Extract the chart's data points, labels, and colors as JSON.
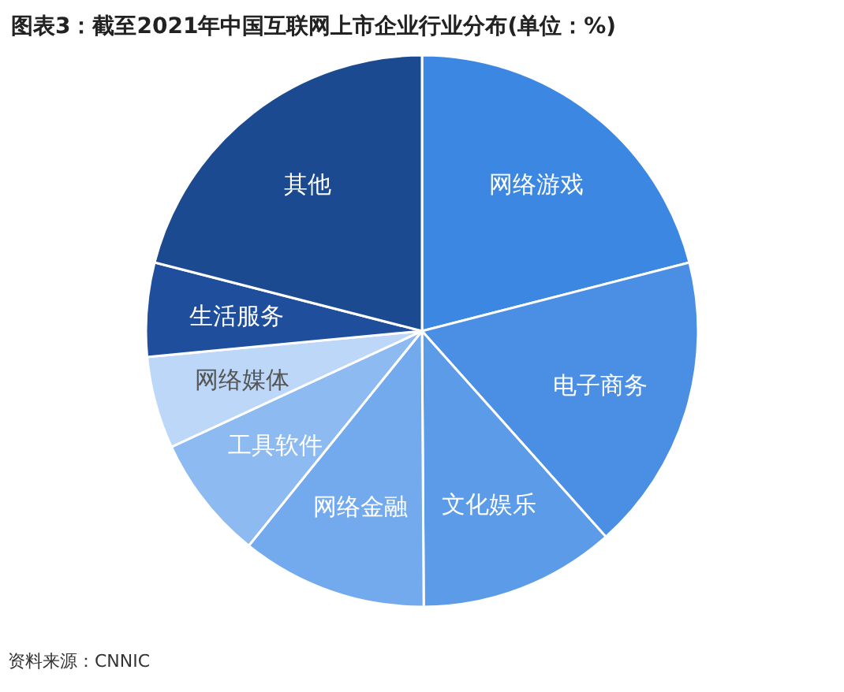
{
  "chart_data": {
    "type": "pie",
    "title": "图表3：截至2021年中国互联网上市企业行业分布(单位：%)",
    "categories": [
      "网络游戏",
      "电子商务",
      "文化娱乐",
      "网络金融",
      "工具软件",
      "网络媒体",
      "生活服务",
      "其他"
    ],
    "values": [
      21.0,
      17.4,
      11.5,
      10.9,
      7.3,
      5.4,
      5.5,
      21.0
    ],
    "colors": [
      "#3b87e2",
      "#4b8fe4",
      "#5b9be8",
      "#72aaed",
      "#8cbaf1",
      "#bcd7f7",
      "#1f4f9c",
      "#1b4a90"
    ],
    "legend": false,
    "annotations": [
      "资料来源：CNNIC"
    ]
  }
}
